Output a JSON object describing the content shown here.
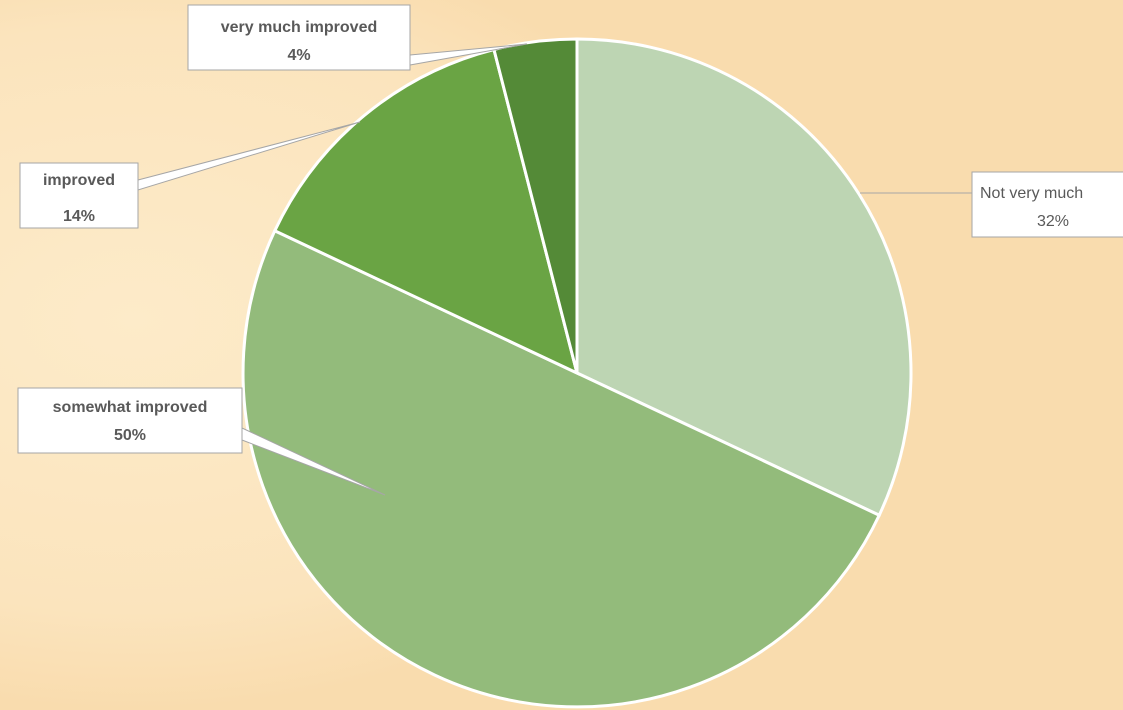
{
  "chart_data": {
    "type": "pie",
    "categories": [
      "Not very much",
      "somewhat improved",
      "improved",
      "very much improved"
    ],
    "values": [
      32,
      50,
      14,
      4
    ],
    "value_labels": [
      "32%",
      "50%",
      "14%",
      "4%"
    ],
    "colors": [
      "#bdd5b3",
      "#93bb7b",
      "#6aa444",
      "#548a37"
    ]
  }
}
